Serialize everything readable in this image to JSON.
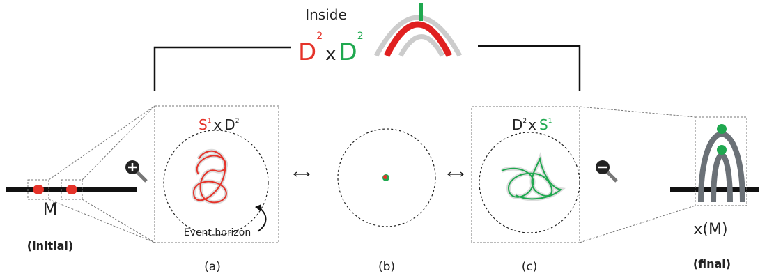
{
  "top": {
    "label": "Inside",
    "formula": {
      "base1": "D",
      "exp1": "2",
      "op": "x",
      "base2": "D",
      "exp2": "2"
    }
  },
  "initial": {
    "label": "M",
    "caption": "(initial)"
  },
  "panels": [
    {
      "formula": {
        "base1": "S",
        "exp1": "1",
        "op": "x",
        "base2": "D",
        "exp2": "2"
      },
      "note": "Event horizon",
      "caption": "(a)"
    },
    {
      "caption": "(b)"
    },
    {
      "formula": {
        "base1": "D",
        "exp1": "2",
        "op": "x",
        "base2": "S",
        "exp2": "1"
      },
      "caption": "(c)"
    }
  ],
  "final": {
    "label": "x(M)",
    "caption": "(final)"
  }
}
